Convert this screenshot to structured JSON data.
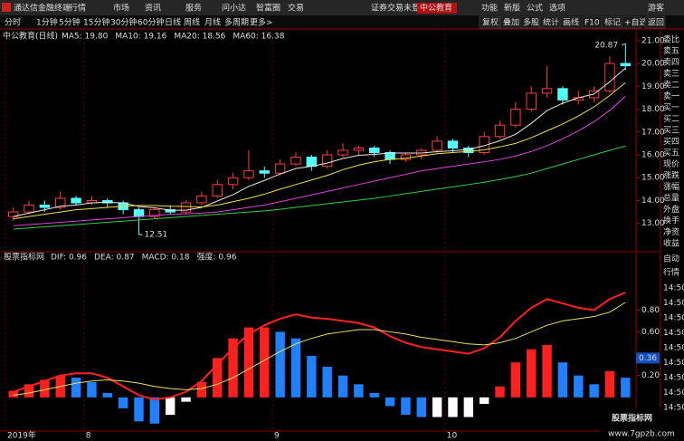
{
  "top_bar": {
    "app": "通达信金融终端",
    "menu": [
      "行情",
      "市场",
      "资讯",
      "服务",
      "问小达",
      "智富圈",
      "交易"
    ],
    "login": "证券交易未登录",
    "stock": "中公教育",
    "tools": [
      "功能",
      "新版",
      "公式",
      "选项"
    ],
    "user": "游客"
  },
  "toolbar": {
    "left": [
      "分时",
      "1分钟",
      "5分钟",
      "15分钟",
      "30分钟",
      "60分钟",
      "日线",
      "周线",
      "月线",
      "多周期",
      "更多>"
    ],
    "right": [
      "复权",
      "叠加",
      "多股",
      "统计",
      "画线",
      "F10",
      "标记",
      "+自选",
      "返回"
    ]
  },
  "side_panel": {
    "quote_labels": [
      "委比",
      "卖五",
      "卖四",
      "卖三",
      "卖二",
      "卖一",
      "买一",
      "买二",
      "买三",
      "买四",
      "买五",
      "现价",
      "涨跌",
      "涨幅",
      "总量",
      "外盘",
      "换手",
      "净资",
      "收益"
    ],
    "tabs": [
      "自动",
      "行情"
    ],
    "times": [
      "14:50",
      "14:50",
      "14:50",
      "14:50",
      "14:50",
      "14:50",
      "14:50",
      "14:50",
      "14:50"
    ]
  },
  "watermark": {
    "title": "股票指标网",
    "url": "www.7gpzb.com"
  },
  "chart_data": [
    {
      "type": "candlestick",
      "title": "中公教育(日线)",
      "categories": [
        "2019年",
        null,
        null,
        null,
        null,
        "8",
        null,
        null,
        null,
        null,
        null,
        null,
        null,
        null,
        null,
        null,
        null,
        "9",
        null,
        null,
        null,
        null,
        null,
        null,
        null,
        null,
        null,
        null,
        "10",
        null,
        null,
        null,
        null,
        null,
        null,
        null,
        null,
        null,
        null,
        null
      ],
      "open": [
        13.3,
        13.5,
        13.8,
        13.7,
        14.1,
        13.9,
        14.0,
        13.9,
        13.6,
        13.3,
        13.6,
        13.5,
        13.9,
        14.2,
        14.7,
        15.0,
        15.3,
        15.2,
        15.6,
        15.9,
        15.5,
        16.0,
        16.2,
        16.3,
        16.1,
        15.8,
        16.0,
        16.2,
        16.6,
        16.3,
        16.1,
        16.8,
        17.3,
        18.0,
        18.7,
        18.9,
        18.4,
        18.5,
        18.8,
        20.0
      ],
      "high": [
        13.7,
        14.0,
        14.0,
        14.4,
        14.2,
        14.2,
        14.1,
        14.0,
        13.7,
        13.7,
        13.8,
        14.0,
        14.4,
        14.9,
        15.2,
        16.2,
        15.5,
        15.8,
        16.1,
        16.0,
        16.2,
        16.5,
        16.4,
        16.4,
        16.2,
        16.1,
        16.3,
        16.8,
        16.7,
        16.4,
        17.0,
        17.5,
        18.3,
        19.0,
        19.9,
        19.0,
        18.8,
        19.0,
        20.3,
        20.87
      ],
      "low": [
        13.1,
        13.4,
        13.5,
        13.6,
        13.8,
        13.8,
        13.7,
        13.4,
        12.51,
        13.2,
        13.4,
        13.4,
        13.8,
        14.1,
        14.5,
        14.9,
        15.0,
        15.1,
        15.5,
        15.3,
        15.4,
        15.9,
        16.0,
        15.9,
        15.6,
        15.7,
        15.8,
        16.1,
        16.1,
        15.9,
        16.0,
        16.7,
        17.2,
        17.9,
        18.5,
        18.2,
        18.2,
        18.3,
        18.7,
        19.7
      ],
      "close": [
        13.5,
        13.8,
        13.7,
        14.1,
        13.9,
        14.0,
        13.9,
        13.6,
        13.3,
        13.6,
        13.5,
        13.9,
        14.2,
        14.7,
        15.0,
        15.3,
        15.2,
        15.6,
        15.9,
        15.5,
        16.0,
        16.2,
        16.3,
        16.1,
        15.8,
        16.0,
        16.2,
        16.6,
        16.3,
        16.1,
        16.8,
        17.3,
        18.0,
        18.7,
        18.9,
        18.4,
        18.5,
        18.8,
        20.0,
        19.9
      ],
      "up_color": "#ff3c3c",
      "down_color": "#54ffff",
      "series": [
        {
          "legend": "MA5: 19.80",
          "color": "#e8e8e8",
          "values": [
            13.3,
            13.45,
            13.6,
            13.75,
            13.8,
            13.9,
            13.92,
            13.9,
            13.74,
            13.68,
            13.58,
            13.58,
            13.7,
            13.98,
            14.26,
            14.62,
            14.88,
            15.16,
            15.4,
            15.5,
            15.64,
            15.84,
            15.98,
            16.02,
            16.08,
            16.08,
            16.08,
            16.14,
            16.18,
            16.24,
            16.4,
            16.62,
            16.9,
            17.38,
            17.94,
            18.26,
            18.5,
            18.66,
            19.2,
            19.8
          ]
        },
        {
          "legend": "MA10: 19.16",
          "color": "#f0e040",
          "values": [
            13.2,
            13.3,
            13.4,
            13.5,
            13.6,
            13.65,
            13.7,
            13.75,
            13.78,
            13.78,
            13.75,
            13.74,
            13.72,
            13.8,
            13.95,
            14.1,
            14.28,
            14.5,
            14.7,
            14.9,
            15.1,
            15.35,
            15.55,
            15.7,
            15.8,
            15.85,
            15.95,
            16.05,
            16.1,
            16.15,
            16.22,
            16.35,
            16.5,
            16.75,
            17.05,
            17.35,
            17.7,
            18.1,
            18.6,
            19.16
          ]
        },
        {
          "legend": "MA20: 18.56",
          "color": "#e040e0",
          "values": [
            12.9,
            12.95,
            13.0,
            13.05,
            13.1,
            13.15,
            13.2,
            13.25,
            13.3,
            13.35,
            13.4,
            13.42,
            13.45,
            13.5,
            13.6,
            13.7,
            13.8,
            13.95,
            14.1,
            14.25,
            14.4,
            14.55,
            14.7,
            14.85,
            15.0,
            15.15,
            15.3,
            15.4,
            15.5,
            15.6,
            15.7,
            15.8,
            15.95,
            16.15,
            16.4,
            16.7,
            17.05,
            17.45,
            17.95,
            18.56
          ]
        },
        {
          "legend": "MA60: 16.38",
          "color": "#30d040",
          "values": [
            12.75,
            12.8,
            12.85,
            12.9,
            12.95,
            13.0,
            13.05,
            13.1,
            13.15,
            13.2,
            13.25,
            13.3,
            13.35,
            13.4,
            13.45,
            13.5,
            13.55,
            13.62,
            13.7,
            13.78,
            13.86,
            13.94,
            14.02,
            14.1,
            14.2,
            14.3,
            14.4,
            14.5,
            14.6,
            14.7,
            14.8,
            14.92,
            15.05,
            15.2,
            15.4,
            15.6,
            15.8,
            16.0,
            16.2,
            16.38
          ]
        }
      ],
      "ylim": [
        11.8,
        21.35
      ],
      "yticks": [
        {
          "value": 13,
          "label": "13.00"
        },
        {
          "value": 14,
          "label": "14.00"
        },
        {
          "value": 15,
          "label": "15.00"
        },
        {
          "value": 16,
          "label": "16.00"
        },
        {
          "value": 17,
          "label": "17.00"
        },
        {
          "value": 18,
          "label": "18.00"
        },
        {
          "value": 19,
          "label": "19.00"
        },
        {
          "value": 20,
          "label": "20.00"
        },
        {
          "value": 21,
          "label": "21.00"
        }
      ]
    },
    {
      "type": "macd",
      "title": "股票指标网",
      "lines": [
        {
          "legend": "DIF: 0.96",
          "legend_color": "#40e040",
          "color": "#ff2020",
          "values": [
            0.05,
            0.1,
            0.15,
            0.2,
            0.22,
            0.22,
            0.18,
            0.1,
            0.02,
            -0.02,
            0.0,
            0.05,
            0.15,
            0.3,
            0.45,
            0.58,
            0.66,
            0.72,
            0.76,
            0.73,
            0.72,
            0.7,
            0.68,
            0.64,
            0.56,
            0.5,
            0.46,
            0.44,
            0.42,
            0.4,
            0.45,
            0.55,
            0.7,
            0.82,
            0.9,
            0.86,
            0.82,
            0.8,
            0.9,
            0.96
          ]
        },
        {
          "legend": "DEA: 0.87",
          "legend_color": "#ffffff",
          "color": "#e8e060",
          "values": [
            0.02,
            0.04,
            0.07,
            0.1,
            0.13,
            0.15,
            0.16,
            0.15,
            0.13,
            0.1,
            0.08,
            0.07,
            0.08,
            0.12,
            0.18,
            0.26,
            0.34,
            0.42,
            0.49,
            0.54,
            0.58,
            0.6,
            0.62,
            0.62,
            0.6,
            0.58,
            0.55,
            0.53,
            0.51,
            0.49,
            0.48,
            0.5,
            0.54,
            0.6,
            0.66,
            0.7,
            0.72,
            0.74,
            0.78,
            0.87
          ]
        }
      ],
      "bars": {
        "legend": "MACD: 0.18",
        "legend_color": "#e040e0",
        "values": [
          0.06,
          0.12,
          0.16,
          0.2,
          0.18,
          0.14,
          0.04,
          -0.1,
          -0.22,
          -0.24,
          -0.16,
          -0.04,
          0.14,
          0.36,
          0.54,
          0.64,
          0.64,
          0.6,
          0.54,
          0.38,
          0.28,
          0.2,
          0.12,
          0.04,
          -0.08,
          -0.16,
          -0.18,
          -0.18,
          -0.18,
          -0.18,
          -0.06,
          0.1,
          0.32,
          0.44,
          0.48,
          0.32,
          0.2,
          0.12,
          0.24,
          0.18
        ],
        "rise_color": "#ff2020",
        "fall_color": "#2080ff",
        "neg_rise_color": "#ffffff"
      },
      "strength_label": "强度: 0.96",
      "strength_color": "#ff3030",
      "ylim": [
        -0.3,
        1.3
      ],
      "yticks": [
        {
          "value": 0.2,
          "label": "0.20"
        },
        {
          "value": 0.6,
          "label": "0.60"
        },
        {
          "value": 0.8,
          "label": "0.80"
        }
      ],
      "marker": {
        "value": 0.36,
        "label": "0.36"
      }
    }
  ]
}
